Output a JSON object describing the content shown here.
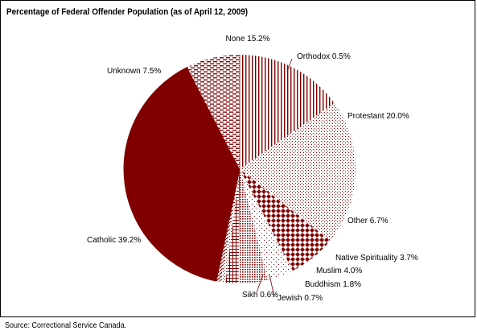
{
  "chart_data": {
    "type": "pie",
    "title": "Percentage of Federal Offender Population (as of April 12, 2009)",
    "slices": [
      {
        "label": "None",
        "value": 15.2,
        "display": "None 15.2%",
        "pattern": "vlines"
      },
      {
        "label": "Orthodox",
        "value": 0.5,
        "display": "Orthodox 0.5%",
        "pattern": "dots-sparse"
      },
      {
        "label": "Protestant",
        "value": 20.0,
        "display": "Protestant 20.0%",
        "pattern": "dots"
      },
      {
        "label": "Other",
        "value": 6.7,
        "display": "Other 6.7%",
        "pattern": "diamonds"
      },
      {
        "label": "Native Spirituality",
        "value": 3.7,
        "display": "Native Spirituality 3.7%",
        "pattern": "dots-light"
      },
      {
        "label": "Muslim",
        "value": 4.0,
        "display": "Muslim 4.0%",
        "pattern": "dense-dots"
      },
      {
        "label": "Buddhism",
        "value": 1.8,
        "display": "Buddhism 1.8%",
        "pattern": "grid"
      },
      {
        "label": "Jewish",
        "value": 0.7,
        "display": "Jewish 0.7%",
        "pattern": "dots"
      },
      {
        "label": "Sikh",
        "value": 0.6,
        "display": "Sikh 0.6%",
        "pattern": "diag"
      },
      {
        "label": "Catholic",
        "value": 39.2,
        "display": "Catholic 39.2%",
        "pattern": "solid"
      },
      {
        "label": "Unknown",
        "value": 7.5,
        "display": "Unknown 7.5%",
        "pattern": "dashes"
      }
    ],
    "colors": {
      "main": "#800000",
      "background": "#ffffff",
      "leader": "#800000"
    }
  },
  "source": "Source:  Correctional Service Canada."
}
